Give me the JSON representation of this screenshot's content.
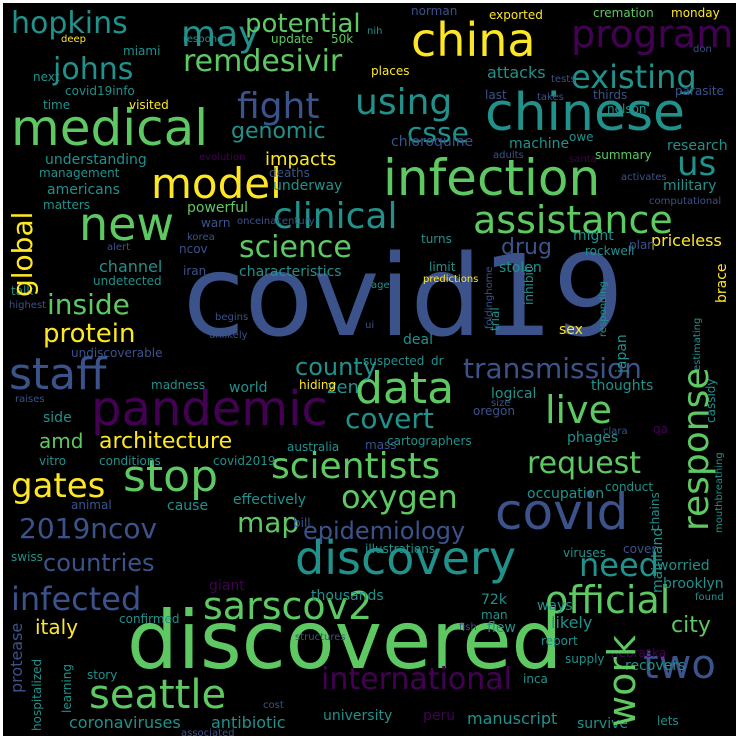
{
  "colors": {
    "background": "#000000",
    "palette": [
      "#440154",
      "#3b528b",
      "#21918c",
      "#5ec962",
      "#fde725"
    ]
  },
  "words": {
    "covid19": "covid19",
    "discovered": "discovered",
    "pandemic": "pandemic",
    "chinese": "chinese",
    "medical": "medical",
    "infection": "infection",
    "china": "china",
    "covid": "covid",
    "new": "new",
    "stop": "stop",
    "staff": "staff",
    "discovery": "discovery",
    "seattle": "seattle",
    "sarscov2": "sarscov2",
    "data": "data",
    "assistance": "assistance",
    "clinical": "clinical",
    "model": "model",
    "scientists": "scientists",
    "official": "official",
    "program": "program",
    "fight": "fight",
    "hopkins": "hopkins",
    "may": "may",
    "potential": "potential",
    "remdesivir": "remdesivir",
    "existing": "existing",
    "johns": "johns",
    "using": "using",
    "csse": "csse",
    "genomic": "genomic",
    "us": "us",
    "science": "science",
    "global": "global",
    "inside": "inside",
    "protein": "protein",
    "live": "live",
    "transmission": "transmission",
    "response": "response",
    "county": "county",
    "covert": "covert",
    "request": "request",
    "oxygen": "oxygen",
    "gates": "gates",
    "map": "map",
    "2019ncov": "2019ncov",
    "countries": "countries",
    "infected": "infected",
    "need": "need",
    "international": "international",
    "two": "two",
    "work": "work",
    "epidemiology": "epidemiology",
    "architecture": "architecture",
    "amd": "amd",
    "impacts": "impacts",
    "drug": "drug",
    "italy": "italy",
    "city": "city",
    "zen": "zen",
    "channel": "channel",
    "characteristics": "characteristics",
    "priceless": "priceless",
    "stolen": "stolen",
    "world": "world",
    "deaths": "deaths",
    "military": "military",
    "research": "research",
    "summary": "summary",
    "underway": "underway",
    "powerful": "powerful",
    "understanding": "understanding",
    "americans": "americans",
    "matters": "matters",
    "time": "time",
    "visited": "visited",
    "covid19info": "covid19info",
    "next": "next",
    "miami": "miami",
    "50k": "50k",
    "update": "update",
    "attacks": "attacks",
    "nelson": "nelson",
    "parasite": "parasite",
    "places": "places",
    "last": "last",
    "takes": "takes",
    "thirds": "thirds",
    "tests": "tests",
    "cremation": "cremation",
    "monday": "monday",
    "exported": "exported",
    "norman": "norman",
    "nih": "nih",
    "respond": "respond",
    "deep": "deep",
    "don": "don",
    "chloroquine": "chloroquine",
    "machine": "machine",
    "owe": "owe",
    "adults": "adults",
    "evolution": "evolution",
    "management": "management",
    "activates": "activates",
    "computational": "computational",
    "santa": "santa",
    "warn": "warn",
    "korea": "korea",
    "ncov": "ncov",
    "iran": "iran",
    "alert": "alert",
    "onceinacentury": "onceinacentury",
    "turns": "turns",
    "might": "might",
    "plan": "plan",
    "rockwell": "rockwell",
    "brace": "brace",
    "limit": "limit",
    "undetected": "undetected",
    "talk": "talk",
    "highest": "highest",
    "predictions": "predictions",
    "age": "age",
    "foldinghome": "foldinghome",
    "inhibit": "inhibit",
    "trial": "trial",
    "begins": "begins",
    "unlikely": "unlikely",
    "ui": "ui",
    "deal": "deal",
    "sex": "sex",
    "responding": "responding",
    "japan": "japan",
    "estimating": "estimating",
    "cassidy": "cassidy",
    "undiscoverable": "undiscoverable",
    "suspected": "suspected",
    "dr": "dr",
    "madness": "madness",
    "hiding": "hiding",
    "logical": "logical",
    "thoughts": "thoughts",
    "oregon": "oregon",
    "size": "size",
    "side": "side",
    "raises": "raises",
    "clara": "clara",
    "qa": "qa",
    "phages": "phages",
    "mass": "mass",
    "cartographers": "cartographers",
    "australia": "australia",
    "conditions": "conditions",
    "covid2019": "covid2019",
    "vitro": "vitro",
    "cause": "cause",
    "effectively": "effectively",
    "occupation": "occupation",
    "conduct": "conduct",
    "mouthbreathing": "mouthbreathing",
    "animal": "animal",
    "bill": "bill",
    "chains": "chains",
    "illustrations": "illustrations",
    "viruses": "viruses",
    "cover": "cover",
    "mainland": "mainland",
    "worried": "worried",
    "brooklyn": "brooklyn",
    "swiss": "swiss",
    "giant": "giant",
    "thousands": "thousands",
    "72k": "72k",
    "ways": "ways",
    "found": "found",
    "confirmed": "confirmed",
    "man": "man",
    "flew": "flew",
    "likely": "likely",
    "protease": "protease",
    "structures": "structures",
    "fish": "fish",
    "report": "report",
    "nebraska": "nebraska",
    "supply": "supply",
    "recovers": "recovers",
    "hospitalized": "hospitalized",
    "learning": "learning",
    "story": "story",
    "inca": "inca",
    "coronaviruses": "coronaviruses",
    "antibiotic": "antibiotic",
    "university": "university",
    "peru": "peru",
    "manuscript": "manuscript",
    "survive": "survive",
    "lets": "lets",
    "cost": "cost",
    "associated": "associated"
  }
}
